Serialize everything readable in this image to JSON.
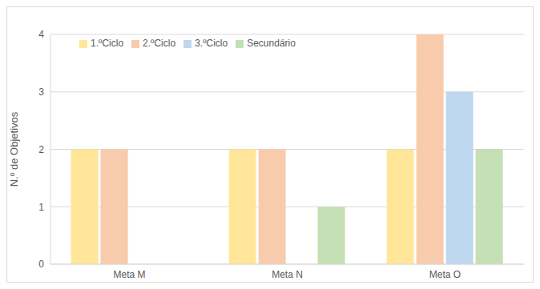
{
  "chart_data": {
    "type": "bar",
    "y_label": "N.º de Objetivos",
    "categories": [
      "Meta M",
      "Meta N",
      "Meta O"
    ],
    "series": [
      {
        "name": "1.ºCiclo",
        "color": "#FFE699",
        "values": [
          2,
          2,
          2
        ]
      },
      {
        "name": "2.ºCiclo",
        "color": "#F8CBAD",
        "values": [
          2,
          2,
          4
        ]
      },
      {
        "name": "3.ºCiclo",
        "color": "#BDD7EE",
        "values": [
          0,
          0,
          3
        ]
      },
      {
        "name": "Secundário",
        "color": "#C5E0B4",
        "values": [
          0,
          1,
          2
        ]
      }
    ],
    "ylim": [
      0,
      4
    ],
    "yticks": [
      0,
      1,
      2,
      3,
      4
    ],
    "grid": true,
    "legend": "top-left"
  }
}
